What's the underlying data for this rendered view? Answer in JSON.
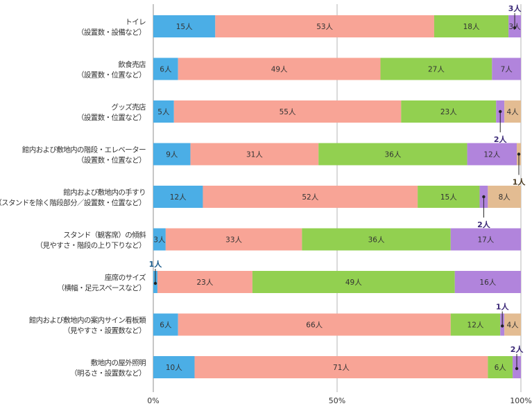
{
  "chart_data": {
    "type": "bar",
    "orientation": "horizontal",
    "stacked": "percent",
    "categories": [
      [
        "トイレ",
        "（設置数・設備など）"
      ],
      [
        "飲食売店",
        "（設置数・位置など）"
      ],
      [
        "グッズ売店",
        "（設置数・位置など）"
      ],
      [
        "館内および敷地内の階段・エレベーター",
        "（設置数・位置など）"
      ],
      [
        "館内および敷地内の手すり",
        "（スタンドを除く階段部分／設置数・位置など）"
      ],
      [
        "スタンド（観客席）の傾斜",
        "（見やすさ・階段の上り下りなど）"
      ],
      [
        "座席のサイズ",
        "（横幅・足元スペースなど）"
      ],
      [
        "館内および敷地内の案内サイン看板類",
        "（見やすさ・設置数など）"
      ],
      [
        "敷地内の屋外照明",
        "（明るさ・設置数など）"
      ]
    ],
    "series": [
      {
        "color": "#4baee6",
        "values": [
          15,
          6,
          5,
          9,
          12,
          3,
          1,
          6,
          10
        ]
      },
      {
        "color": "#f8a496",
        "values": [
          53,
          49,
          55,
          31,
          52,
          33,
          23,
          66,
          71
        ]
      },
      {
        "color": "#92d050",
        "values": [
          18,
          27,
          23,
          36,
          15,
          36,
          49,
          12,
          6
        ]
      },
      {
        "color": "#b184dc",
        "values": [
          3,
          7,
          2,
          12,
          2,
          17,
          16,
          1,
          2
        ]
      },
      {
        "color": "#e3bc92",
        "values": [
          0,
          0,
          4,
          1,
          8,
          0,
          0,
          4,
          0
        ]
      }
    ],
    "value_unit": "人",
    "x_ticks": [
      "0%",
      "50%",
      "100%"
    ],
    "grid": "vertical at 50%",
    "legend": "none",
    "callouts": [
      {
        "row": 0,
        "series": 3,
        "value": 3,
        "label_color": "#3c2a78"
      },
      {
        "row": 2,
        "series": 3,
        "value": 2,
        "label_color": "#3c2a78"
      },
      {
        "row": 3,
        "series": 4,
        "value": 1,
        "label_color": "#4a3a20"
      },
      {
        "row": 4,
        "series": 3,
        "value": 2,
        "label_color": "#3c2a78"
      },
      {
        "row": 6,
        "series": 0,
        "value": 1,
        "label_color": "#1b5c8c"
      },
      {
        "row": 7,
        "series": 3,
        "value": 1,
        "label_color": "#3c2a78"
      },
      {
        "row": 8,
        "series": 3,
        "value": 2,
        "label_color": "#3c2a78"
      }
    ]
  }
}
